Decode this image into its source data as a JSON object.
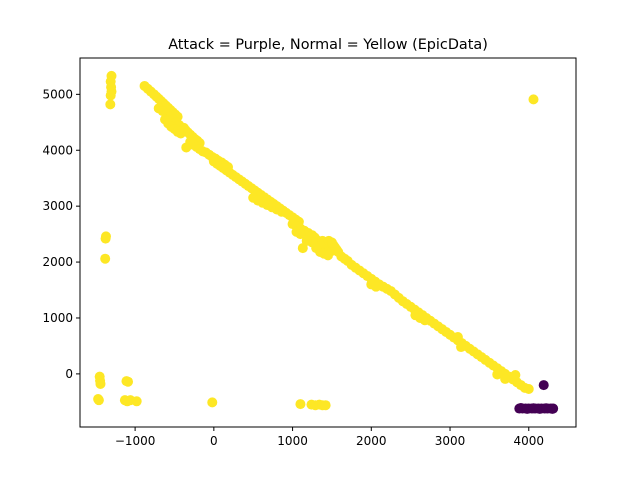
{
  "chart_data": {
    "type": "scatter",
    "title": "Attack = Purple, Normal = Yellow (EpicData)",
    "xlabel": "",
    "ylabel": "",
    "xlim": [
      -1700,
      4600
    ],
    "ylim": [
      -950,
      5650
    ],
    "x_ticks": [
      -1000,
      0,
      1000,
      2000,
      3000,
      4000
    ],
    "y_ticks": [
      0,
      1000,
      2000,
      3000,
      4000,
      5000
    ],
    "x_tick_labels": [
      "−1000",
      "0",
      "1000",
      "2000",
      "3000",
      "4000"
    ],
    "y_tick_labels": [
      "0",
      "1000",
      "2000",
      "3000",
      "4000",
      "5000"
    ],
    "grid": false,
    "legend": "none",
    "series": [
      {
        "color": "#fde725",
        "points": [
          [
            -1300,
            5330
          ],
          [
            -1310,
            5230
          ],
          [
            -1305,
            5130
          ],
          [
            -1300,
            5050
          ],
          [
            -1310,
            4980
          ],
          [
            -1315,
            4820
          ],
          [
            -1370,
            2460
          ],
          [
            -1375,
            2420
          ],
          [
            -1380,
            2060
          ],
          [
            -1450,
            -50
          ],
          [
            -1445,
            -120
          ],
          [
            -1440,
            -180
          ],
          [
            -1470,
            -450
          ],
          [
            -1460,
            -470
          ],
          [
            -1110,
            -130
          ],
          [
            -1090,
            -140
          ],
          [
            -1130,
            -470
          ],
          [
            -1100,
            -490
          ],
          [
            -1060,
            -470
          ],
          [
            -980,
            -490
          ],
          [
            -20,
            -510
          ],
          [
            1100,
            -540
          ],
          [
            1240,
            -550
          ],
          [
            1290,
            -560
          ],
          [
            1340,
            -550
          ],
          [
            1380,
            -560
          ],
          [
            1420,
            -560
          ],
          [
            -880,
            5150
          ],
          [
            -840,
            5100
          ],
          [
            -800,
            5050
          ],
          [
            -760,
            5000
          ],
          [
            -730,
            4960
          ],
          [
            -700,
            4920
          ],
          [
            -670,
            4880
          ],
          [
            -640,
            4840
          ],
          [
            -610,
            4800
          ],
          [
            -580,
            4760
          ],
          [
            -550,
            4720
          ],
          [
            -520,
            4680
          ],
          [
            -490,
            4640
          ],
          [
            -460,
            4600
          ],
          [
            -700,
            4750
          ],
          [
            -650,
            4700
          ],
          [
            -600,
            4650
          ],
          [
            -560,
            4600
          ],
          [
            -520,
            4550
          ],
          [
            -480,
            4500
          ],
          [
            -440,
            4450
          ],
          [
            -620,
            4550
          ],
          [
            -580,
            4480
          ],
          [
            -540,
            4420
          ],
          [
            -500,
            4380
          ],
          [
            -460,
            4330
          ],
          [
            -420,
            4300
          ],
          [
            -380,
            4400
          ],
          [
            -360,
            4360
          ],
          [
            -330,
            4320
          ],
          [
            -300,
            4280
          ],
          [
            -270,
            4240
          ],
          [
            -240,
            4200
          ],
          [
            -210,
            4170
          ],
          [
            -180,
            4130
          ],
          [
            -300,
            4150
          ],
          [
            -260,
            4100
          ],
          [
            -220,
            4060
          ],
          [
            -180,
            4020
          ],
          [
            -140,
            3980
          ],
          [
            -100,
            3960
          ],
          [
            -350,
            4050
          ],
          [
            -60,
            3920
          ],
          [
            -20,
            3880
          ],
          [
            20,
            3850
          ],
          [
            60,
            3810
          ],
          [
            100,
            3780
          ],
          [
            140,
            3740
          ],
          [
            180,
            3700
          ],
          [
            0,
            3800
          ],
          [
            40,
            3760
          ],
          [
            80,
            3720
          ],
          [
            120,
            3680
          ],
          [
            160,
            3640
          ],
          [
            200,
            3600
          ],
          [
            240,
            3560
          ],
          [
            280,
            3520
          ],
          [
            320,
            3480
          ],
          [
            360,
            3440
          ],
          [
            400,
            3400
          ],
          [
            440,
            3360
          ],
          [
            480,
            3320
          ],
          [
            520,
            3280
          ],
          [
            560,
            3240
          ],
          [
            600,
            3200
          ],
          [
            640,
            3160
          ],
          [
            680,
            3120
          ],
          [
            720,
            3080
          ],
          [
            760,
            3040
          ],
          [
            800,
            3000
          ],
          [
            500,
            3150
          ],
          [
            560,
            3100
          ],
          [
            620,
            3060
          ],
          [
            680,
            3020
          ],
          [
            740,
            2980
          ],
          [
            800,
            2940
          ],
          [
            860,
            2900
          ],
          [
            840,
            2960
          ],
          [
            880,
            2920
          ],
          [
            920,
            2880
          ],
          [
            960,
            2840
          ],
          [
            1000,
            2800
          ],
          [
            1040,
            2760
          ],
          [
            1080,
            2720
          ],
          [
            1000,
            2680
          ],
          [
            1050,
            2640
          ],
          [
            1100,
            2600
          ],
          [
            1150,
            2560
          ],
          [
            1200,
            2520
          ],
          [
            1050,
            2540
          ],
          [
            1100,
            2500
          ],
          [
            1250,
            2480
          ],
          [
            1280,
            2440
          ],
          [
            1300,
            2400
          ],
          [
            1320,
            2360
          ],
          [
            1340,
            2320
          ],
          [
            1360,
            2280
          ],
          [
            1380,
            2240
          ],
          [
            1400,
            2200
          ],
          [
            1420,
            2360
          ],
          [
            1440,
            2320
          ],
          [
            1460,
            2280
          ],
          [
            1480,
            2240
          ],
          [
            1500,
            2200
          ],
          [
            1520,
            2300
          ],
          [
            1540,
            2260
          ],
          [
            1560,
            2220
          ],
          [
            1580,
            2180
          ],
          [
            1400,
            2150
          ],
          [
            1450,
            2120
          ],
          [
            1350,
            2180
          ],
          [
            1300,
            2250
          ],
          [
            1380,
            2380
          ],
          [
            1400,
            2340
          ],
          [
            1460,
            2380
          ],
          [
            1500,
            2350
          ],
          [
            1250,
            2350
          ],
          [
            1180,
            2380
          ],
          [
            1130,
            2250
          ],
          [
            1620,
            2100
          ],
          [
            1660,
            2060
          ],
          [
            1700,
            2020
          ],
          [
            1750,
            1950
          ],
          [
            1800,
            1900
          ],
          [
            1850,
            1850
          ],
          [
            1900,
            1800
          ],
          [
            1950,
            1750
          ],
          [
            2000,
            1700
          ],
          [
            2050,
            1650
          ],
          [
            2100,
            1600
          ],
          [
            2150,
            1560
          ],
          [
            2200,
            1520
          ],
          [
            2250,
            1480
          ],
          [
            2000,
            1600
          ],
          [
            2060,
            1560
          ],
          [
            2300,
            1420
          ],
          [
            2350,
            1360
          ],
          [
            2400,
            1300
          ],
          [
            2450,
            1250
          ],
          [
            2500,
            1200
          ],
          [
            2550,
            1150
          ],
          [
            2600,
            1100
          ],
          [
            2650,
            1050
          ],
          [
            2700,
            1000
          ],
          [
            2750,
            950
          ],
          [
            2800,
            900
          ],
          [
            2850,
            850
          ],
          [
            2560,
            1050
          ],
          [
            2620,
            1000
          ],
          [
            2680,
            960
          ],
          [
            2900,
            800
          ],
          [
            2950,
            750
          ],
          [
            3000,
            700
          ],
          [
            3050,
            650
          ],
          [
            3100,
            600
          ],
          [
            3150,
            550
          ],
          [
            3200,
            500
          ],
          [
            3250,
            450
          ],
          [
            3300,
            400
          ],
          [
            3350,
            350
          ],
          [
            3400,
            300
          ],
          [
            3100,
            660
          ],
          [
            3140,
            480
          ],
          [
            3450,
            250
          ],
          [
            3500,
            200
          ],
          [
            3550,
            150
          ],
          [
            3600,
            100
          ],
          [
            3650,
            50
          ],
          [
            3700,
            0
          ],
          [
            3750,
            -50
          ],
          [
            3800,
            -100
          ],
          [
            3850,
            -150
          ],
          [
            3900,
            -200
          ],
          [
            3950,
            -250
          ],
          [
            4000,
            -270
          ],
          [
            3600,
            -10
          ],
          [
            3700,
            -90
          ],
          [
            3830,
            -20
          ],
          [
            4060,
            4910
          ]
        ]
      },
      {
        "color": "#440154",
        "points": [
          [
            4190,
            -200
          ],
          [
            3880,
            -620
          ],
          [
            3920,
            -620
          ],
          [
            3960,
            -620
          ],
          [
            4000,
            -620
          ],
          [
            4040,
            -620
          ],
          [
            4080,
            -620
          ],
          [
            4120,
            -620
          ],
          [
            4160,
            -620
          ],
          [
            4200,
            -620
          ],
          [
            4240,
            -620
          ],
          [
            4280,
            -620
          ],
          [
            4310,
            -620
          ],
          [
            3900,
            -610
          ],
          [
            3980,
            -625
          ],
          [
            4060,
            -615
          ],
          [
            4140,
            -625
          ],
          [
            4220,
            -615
          ],
          [
            4300,
            -625
          ]
        ]
      }
    ]
  }
}
